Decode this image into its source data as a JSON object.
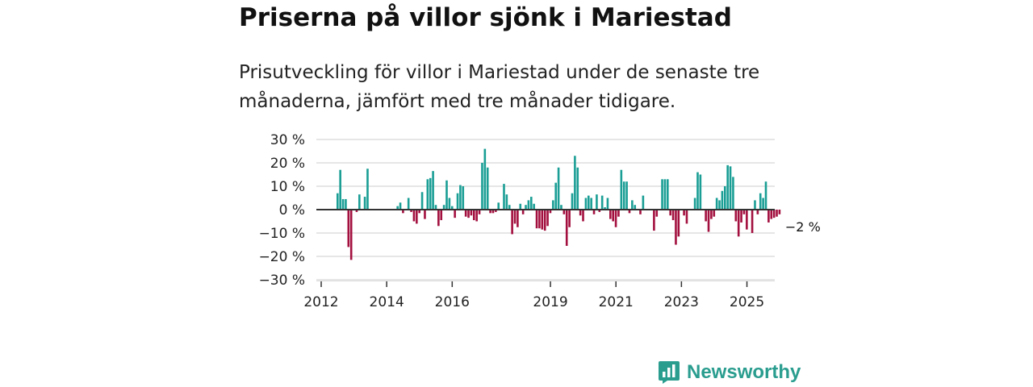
{
  "header": {
    "title": "Priserna på villor sjönk i Mariestad",
    "subtitle": "Prisutveckling för villor i Mariestad under de senaste tre månaderna, jämfört med tre månader tidigare."
  },
  "brand": {
    "name": "Newsworthy",
    "icon": "bar-chart-logo-icon",
    "color": "#2a9d8f"
  },
  "colors": {
    "positive": "#1a9e95",
    "negative": "#a3103f",
    "grid": "#dddddd",
    "zero": "#333333"
  },
  "chart_data": {
    "type": "bar",
    "ylabel_suffix": " %",
    "ylim": [
      -30,
      30
    ],
    "yticks": [
      30,
      20,
      10,
      0,
      -10,
      -20,
      -30
    ],
    "ytick_labels": [
      "30 %",
      "20 %",
      "10 %",
      "0 %",
      "−10 %",
      "−20 %",
      "−30 %"
    ],
    "xlim": [
      2012,
      2025.8
    ],
    "xticks": [
      2012,
      2014,
      2016,
      2019,
      2021,
      2023,
      2025
    ],
    "xtick_labels": [
      "2012",
      "2014",
      "2016",
      "2019",
      "2021",
      "2023",
      "2025"
    ],
    "last_value_label": "−2 %",
    "series": [
      {
        "name": "Prisutveckling",
        "start": 2012.5,
        "step": 0.0833,
        "values": [
          7,
          17,
          4.5,
          4.5,
          -16,
          -21.5,
          0,
          -1,
          6.5,
          0,
          5.5,
          17.5,
          0,
          0,
          0,
          0,
          0,
          0,
          0,
          0,
          0,
          0,
          1.5,
          3,
          -1.5,
          0,
          5,
          -1,
          -5,
          -6,
          -1.5,
          7.5,
          -4,
          13,
          13.5,
          16.5,
          2,
          -7,
          -4.5,
          2,
          12.5,
          5,
          1.5,
          -3.5,
          7,
          10.5,
          10,
          -3,
          -3.5,
          -2.5,
          -4.5,
          -5,
          -2,
          20,
          26,
          18,
          -1.5,
          -1.5,
          -1,
          3,
          0,
          11,
          6.5,
          2,
          -10.5,
          -6,
          -7.5,
          2.5,
          -2,
          2,
          4,
          5.5,
          2.5,
          -8,
          -8,
          -8.5,
          -9,
          -7,
          -1.5,
          4,
          11.5,
          18,
          2,
          -2,
          -15.5,
          -7.5,
          7,
          23,
          18,
          -2.5,
          -5,
          5,
          6,
          5,
          -2,
          6.5,
          -1,
          6,
          1,
          5,
          -4,
          -5,
          -7.5,
          -3,
          17,
          12,
          12,
          -1.5,
          4,
          2,
          0,
          -2,
          6,
          0,
          0,
          0,
          -9,
          -3,
          0,
          13,
          13,
          13,
          -2.5,
          -4.5,
          -15,
          -11.5,
          0,
          -2.5,
          -6,
          0,
          0,
          5,
          16,
          15,
          0,
          -5,
          -9.5,
          -4,
          -3,
          5,
          4,
          8,
          10,
          19,
          18.5,
          14,
          -5,
          -11.5,
          -5.5,
          -2,
          -8.5,
          0,
          -10,
          4,
          -2,
          7,
          5,
          12,
          -5.5,
          -4,
          -3.5,
          -3,
          -2
        ]
      }
    ]
  }
}
